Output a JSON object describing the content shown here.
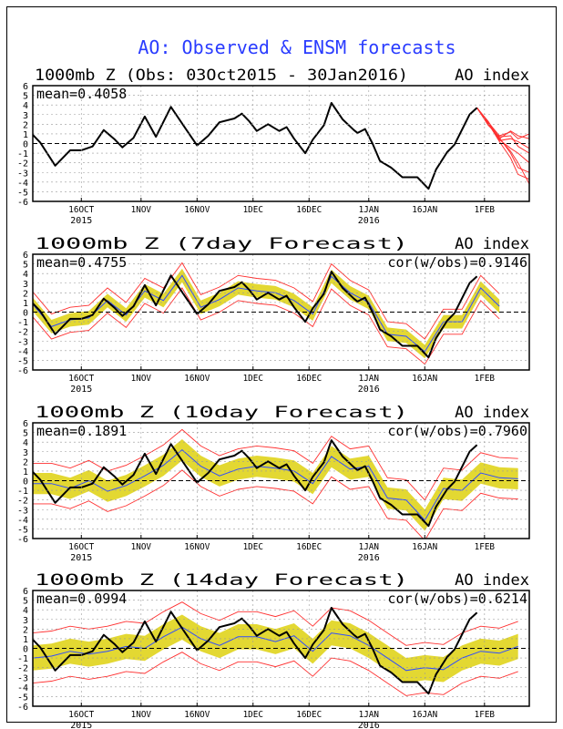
{
  "title": "AO: Observed & ENSM forecasts",
  "colors": {
    "title": "#2a3cff",
    "observed": "#000000",
    "members": "#ff3030",
    "ens_mean": "#2f4cff",
    "spread": "#e3d832",
    "minmax": "#ff3030"
  },
  "chart_data": [
    {
      "type": "line",
      "title": "1000mb Z (Obs: 03Oct2015 - 30Jan2016)",
      "right_label": "AO index",
      "mean_text": "mean=0.4058",
      "cor_text": "",
      "xlim": [
        "2015-10-03",
        "2016-02-13"
      ],
      "ylim": [
        -6,
        6
      ],
      "yticks": [
        "-6",
        "-5",
        "-4",
        "-3",
        "-2",
        "-1",
        "0",
        "1",
        "2",
        "3",
        "4",
        "5",
        "6"
      ],
      "xticks": [
        {
          "date": "2015-10-16",
          "label": "16OCT",
          "sub": "2015"
        },
        {
          "date": "2015-11-01",
          "label": "1NOV",
          "sub": ""
        },
        {
          "date": "2015-11-16",
          "label": "16NOV",
          "sub": ""
        },
        {
          "date": "2015-12-01",
          "label": "1DEC",
          "sub": ""
        },
        {
          "date": "2015-12-16",
          "label": "16DEC",
          "sub": ""
        },
        {
          "date": "2016-01-01",
          "label": "1JAN",
          "sub": "2016"
        },
        {
          "date": "2016-01-16",
          "label": "16JAN",
          "sub": ""
        },
        {
          "date": "2016-02-01",
          "label": "1FEB",
          "sub": ""
        }
      ],
      "grid": true,
      "members": {
        "dates": [
          "2016-01-30",
          "2016-02-02",
          "2016-02-05",
          "2016-02-08",
          "2016-02-10",
          "2016-02-13"
        ],
        "values": [
          [
            3.7,
            2.2,
            0.8,
            1.2,
            0.5,
            1.0
          ],
          [
            3.7,
            2.0,
            0.5,
            1.3,
            0.8,
            0.5
          ],
          [
            3.7,
            2.1,
            0.3,
            0.5,
            0.2,
            -0.5
          ],
          [
            3.7,
            1.9,
            0.7,
            0.8,
            -0.3,
            -1.0
          ],
          [
            3.7,
            2.2,
            0.4,
            -0.5,
            -1.0,
            -2.0
          ],
          [
            3.7,
            2.0,
            0.6,
            -1.0,
            -2.5,
            -3.0
          ],
          [
            3.7,
            2.1,
            0.2,
            -1.5,
            -3.2,
            -3.7
          ],
          [
            3.7,
            2.3,
            0.5,
            -0.8,
            -2.0,
            -4.2
          ]
        ]
      }
    },
    {
      "type": "line",
      "title": "1000mb Z (7day Forecast)",
      "right_label": "AO index",
      "mean_text": "mean=0.4755",
      "cor_text": "cor(w/obs)=0.9146",
      "xlim": [
        "2015-10-03",
        "2016-02-13"
      ],
      "ylim": [
        -6,
        6
      ],
      "forecast": {
        "mean": [
          0.8,
          -1.5,
          -0.8,
          -0.6,
          1.2,
          -0.3,
          2.2,
          1.2,
          3.8,
          0.5,
          1.3,
          2.5,
          2.2,
          2.0,
          1.2,
          -0.2,
          3.7,
          2.0,
          1.0,
          -2.3,
          -2.5,
          -4.1,
          -1.0,
          -1.0,
          2.5,
          0.6,
          null
        ],
        "spread_low": [
          0.1,
          -2.2,
          -1.5,
          -1.3,
          0.5,
          -1.0,
          1.5,
          0.5,
          3.1,
          -0.2,
          0.6,
          1.8,
          1.5,
          1.3,
          0.5,
          -0.9,
          3.0,
          1.3,
          0.3,
          -3.0,
          -3.2,
          -4.8,
          -1.7,
          -1.7,
          1.8,
          -0.1,
          null
        ],
        "spread_high": [
          1.5,
          -0.8,
          -0.1,
          0.1,
          1.9,
          0.4,
          2.9,
          1.9,
          4.5,
          1.2,
          2.0,
          3.2,
          2.9,
          2.7,
          1.9,
          0.5,
          4.4,
          2.7,
          1.7,
          -1.6,
          -1.8,
          -3.4,
          -0.3,
          -0.3,
          3.2,
          1.3,
          null
        ],
        "min": [
          -0.5,
          -2.8,
          -2.1,
          -1.9,
          -0.1,
          -1.6,
          0.9,
          -0.1,
          2.5,
          -0.8,
          0.0,
          1.2,
          0.9,
          0.7,
          -0.1,
          -1.5,
          2.4,
          0.7,
          -0.3,
          -3.6,
          -3.8,
          -5.4,
          -2.3,
          -2.3,
          1.2,
          -0.7,
          null
        ],
        "max": [
          2.1,
          -0.2,
          0.5,
          0.7,
          2.5,
          1.0,
          3.5,
          2.5,
          5.1,
          1.8,
          2.6,
          3.8,
          3.5,
          3.3,
          2.5,
          1.1,
          5.0,
          3.3,
          2.3,
          -1.0,
          -1.2,
          -2.8,
          0.3,
          0.3,
          3.8,
          1.9,
          null
        ]
      }
    },
    {
      "type": "line",
      "title": "1000mb Z (10day Forecast)",
      "right_label": "AO index",
      "mean_text": "mean=0.1891",
      "cor_text": "cor(w/obs)=0.7960",
      "xlim": [
        "2015-10-03",
        "2016-02-13"
      ],
      "ylim": [
        -6,
        6
      ],
      "forecast": {
        "mean": [
          -0.3,
          -0.3,
          -0.8,
          0.0,
          -1.1,
          -0.5,
          0.5,
          1.6,
          3.2,
          1.5,
          0.5,
          1.2,
          1.5,
          1.3,
          1.0,
          -0.3,
          2.5,
          1.2,
          1.5,
          -1.8,
          -2.0,
          -4.1,
          -0.8,
          -1.0,
          0.8,
          0.3,
          0.2
        ],
        "spread_low": [
          -1.4,
          -1.4,
          -1.9,
          -1.1,
          -2.2,
          -1.6,
          -0.6,
          0.5,
          2.1,
          0.4,
          -0.6,
          0.1,
          0.4,
          0.2,
          -0.1,
          -1.4,
          1.4,
          0.1,
          0.4,
          -2.9,
          -3.1,
          -5.2,
          -1.9,
          -2.1,
          -0.3,
          -0.8,
          -0.9
        ],
        "spread_high": [
          0.8,
          0.8,
          0.3,
          1.1,
          0.0,
          0.6,
          1.6,
          2.7,
          4.3,
          2.6,
          1.6,
          2.3,
          2.6,
          2.4,
          2.1,
          0.8,
          3.6,
          2.3,
          2.6,
          -0.7,
          -0.9,
          -3.0,
          0.3,
          0.1,
          1.9,
          1.4,
          1.3
        ],
        "min": [
          -2.4,
          -2.4,
          -2.9,
          -2.1,
          -3.2,
          -2.6,
          -1.6,
          -0.5,
          1.1,
          -0.6,
          -1.6,
          -0.9,
          -0.6,
          -0.8,
          -1.1,
          -2.4,
          0.4,
          -0.9,
          -0.6,
          -3.9,
          -4.1,
          -6.2,
          -2.9,
          -3.1,
          -1.3,
          -1.8,
          -1.9
        ],
        "max": [
          1.8,
          1.8,
          1.3,
          2.1,
          1.0,
          1.6,
          2.6,
          3.7,
          5.3,
          3.6,
          2.6,
          3.3,
          3.6,
          3.4,
          3.1,
          1.8,
          4.6,
          3.3,
          3.6,
          0.3,
          0.1,
          -2.0,
          1.3,
          1.1,
          2.9,
          2.4,
          2.3
        ]
      }
    },
    {
      "type": "line",
      "title": "1000mb Z (14day Forecast)",
      "right_label": "AO index",
      "mean_text": "mean=0.0994",
      "cor_text": "cor(w/obs)=0.6214",
      "xlim": [
        "2015-10-03",
        "2016-02-13"
      ],
      "ylim": [
        -6,
        6
      ],
      "forecast": {
        "mean": [
          -1.0,
          -0.8,
          -0.3,
          -0.6,
          -0.3,
          0.2,
          0.0,
          1.2,
          2.2,
          1.0,
          0.3,
          1.2,
          1.2,
          0.7,
          1.3,
          -0.3,
          1.6,
          1.3,
          0.3,
          -1.0,
          -2.3,
          -2.0,
          -2.2,
          -1.0,
          -0.3,
          -0.5,
          0.2
        ],
        "spread_low": [
          -2.3,
          -2.1,
          -1.6,
          -1.9,
          -1.6,
          -1.1,
          -1.3,
          -0.1,
          0.9,
          -0.3,
          -1.0,
          -0.1,
          -0.1,
          -0.6,
          0.0,
          -1.6,
          0.3,
          0.0,
          -1.0,
          -2.3,
          -3.6,
          -3.3,
          -3.5,
          -2.3,
          -1.6,
          -1.8,
          -1.1
        ],
        "spread_high": [
          0.3,
          0.5,
          1.0,
          0.7,
          1.0,
          1.5,
          1.3,
          2.5,
          3.5,
          2.3,
          1.6,
          2.5,
          2.5,
          2.0,
          2.6,
          1.0,
          2.9,
          2.6,
          1.6,
          0.3,
          -1.0,
          -0.7,
          -0.9,
          0.3,
          1.0,
          0.8,
          1.5
        ],
        "min": [
          -3.6,
          -3.4,
          -2.9,
          -3.2,
          -2.9,
          -2.4,
          -2.6,
          -1.4,
          -0.4,
          -1.6,
          -2.3,
          -1.4,
          -1.4,
          -1.9,
          -1.3,
          -2.9,
          -1.0,
          -1.3,
          -2.3,
          -3.6,
          -4.9,
          -4.6,
          -4.8,
          -3.6,
          -2.9,
          -3.1,
          -2.4
        ],
        "max": [
          1.6,
          1.8,
          2.3,
          2.0,
          2.3,
          2.8,
          2.6,
          3.8,
          4.8,
          3.6,
          2.9,
          3.8,
          3.8,
          3.3,
          3.9,
          2.3,
          4.2,
          3.9,
          2.9,
          1.6,
          0.3,
          0.6,
          0.4,
          1.6,
          2.3,
          2.1,
          2.8
        ]
      }
    }
  ],
  "forecast_dates": [
    "2015-10-03",
    "2015-10-08",
    "2015-10-13",
    "2015-10-18",
    "2015-10-23",
    "2015-10-28",
    "2015-11-02",
    "2015-11-07",
    "2015-11-12",
    "2015-11-17",
    "2015-11-22",
    "2015-11-27",
    "2015-12-02",
    "2015-12-07",
    "2015-12-12",
    "2015-12-17",
    "2015-12-22",
    "2015-12-27",
    "2016-01-01",
    "2016-01-06",
    "2016-01-11",
    "2016-01-16",
    "2016-01-21",
    "2016-01-26",
    "2016-01-31",
    "2016-02-05",
    "2016-02-10"
  ],
  "observed": {
    "dates": [
      "2015-10-03",
      "2015-10-05",
      "2015-10-09",
      "2015-10-13",
      "2015-10-16",
      "2015-10-19",
      "2015-10-22",
      "2015-10-25",
      "2015-10-27",
      "2015-10-30",
      "2015-11-02",
      "2015-11-05",
      "2015-11-09",
      "2015-11-13",
      "2015-11-16",
      "2015-11-19",
      "2015-11-22",
      "2015-11-26",
      "2015-11-28",
      "2015-11-30",
      "2015-12-02",
      "2015-12-05",
      "2015-12-08",
      "2015-12-10",
      "2015-12-12",
      "2015-12-15",
      "2015-12-17",
      "2015-12-20",
      "2015-12-22",
      "2015-12-25",
      "2015-12-28",
      "2015-12-29",
      "2015-12-31",
      "2016-01-02",
      "2016-01-04",
      "2016-01-07",
      "2016-01-10",
      "2016-01-14",
      "2016-01-17",
      "2016-01-19",
      "2016-01-22",
      "2016-01-24",
      "2016-01-28",
      "2016-01-30"
    ],
    "values": [
      0.9,
      0.1,
      -2.3,
      -0.7,
      -0.7,
      -0.3,
      1.4,
      0.4,
      -0.4,
      0.6,
      2.8,
      0.7,
      3.8,
      1.5,
      -0.2,
      0.8,
      2.2,
      2.6,
      3.1,
      2.3,
      1.3,
      2.0,
      1.3,
      1.7,
      0.5,
      -1.0,
      0.4,
      1.9,
      4.2,
      2.5,
      1.4,
      1.1,
      1.5,
      0.0,
      -1.8,
      -2.5,
      -3.5,
      -3.5,
      -4.7,
      -2.7,
      -0.9,
      -0.1,
      3.0,
      3.7
    ]
  }
}
